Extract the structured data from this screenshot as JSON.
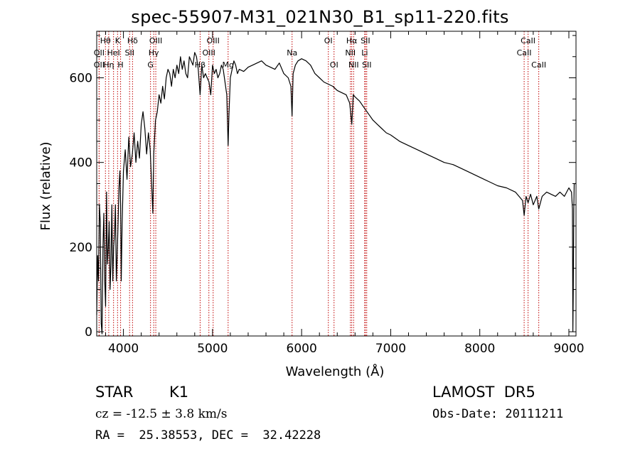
{
  "chart_data": {
    "type": "line",
    "title": "spec-55907-M31_021N30_B1_sp11-220.fits",
    "xlabel": "Wavelength (Å)",
    "ylabel": "Flux (relative)",
    "xlim": [
      3700,
      9080
    ],
    "ylim": [
      -10,
      710
    ],
    "xticks": [
      4000,
      5000,
      6000,
      7000,
      8000,
      9000
    ],
    "xtick_labels": [
      "4000",
      "5000",
      "6000",
      "7000",
      "8000",
      "9000"
    ],
    "yticks": [
      0,
      200,
      400,
      600
    ],
    "ytick_labels": [
      "0",
      "200",
      "400",
      "600"
    ],
    "grid": false,
    "legend": "none",
    "series": [
      {
        "color": "#000000",
        "x": [
          3700,
          3710,
          3720,
          3730,
          3740,
          3750,
          3760,
          3770,
          3780,
          3790,
          3800,
          3810,
          3820,
          3830,
          3840,
          3850,
          3860,
          3870,
          3880,
          3890,
          3900,
          3910,
          3920,
          3930,
          3940,
          3950,
          3960,
          3968,
          3975,
          3985,
          4000,
          4020,
          4040,
          4060,
          4080,
          4100,
          4120,
          4140,
          4160,
          4180,
          4200,
          4220,
          4240,
          4260,
          4280,
          4300,
          4320,
          4330,
          4340,
          4360,
          4380,
          4400,
          4420,
          4440,
          4460,
          4480,
          4500,
          4520,
          4540,
          4560,
          4580,
          4600,
          4620,
          4640,
          4660,
          4680,
          4700,
          4720,
          4740,
          4760,
          4780,
          4800,
          4820,
          4840,
          4861,
          4880,
          4900,
          4920,
          4940,
          4960,
          4980,
          5000,
          5020,
          5040,
          5060,
          5080,
          5100,
          5120,
          5140,
          5160,
          5175,
          5184,
          5200,
          5220,
          5240,
          5260,
          5280,
          5300,
          5350,
          5400,
          5450,
          5500,
          5550,
          5600,
          5650,
          5700,
          5750,
          5800,
          5850,
          5880,
          5893,
          5905,
          5930,
          5960,
          6000,
          6050,
          6100,
          6150,
          6200,
          6250,
          6300,
          6350,
          6400,
          6450,
          6500,
          6540,
          6563,
          6580,
          6600,
          6650,
          6700,
          6750,
          6800,
          6850,
          6900,
          6950,
          7000,
          7100,
          7200,
          7300,
          7400,
          7500,
          7600,
          7700,
          7800,
          7900,
          8000,
          8100,
          8200,
          8300,
          8400,
          8480,
          8498,
          8520,
          8542,
          8570,
          8600,
          8640,
          8662,
          8700,
          8750,
          8800,
          8850,
          8900,
          8950,
          9000,
          9030,
          9040,
          9045,
          9050,
          9055,
          9060,
          9070,
          9080
        ],
        "y": [
          40,
          180,
          120,
          300,
          260,
          20,
          -5,
          200,
          280,
          120,
          60,
          330,
          160,
          200,
          260,
          100,
          160,
          300,
          120,
          200,
          230,
          300,
          120,
          180,
          260,
          340,
          380,
          300,
          120,
          250,
          380,
          430,
          360,
          460,
          390,
          420,
          470,
          400,
          450,
          410,
          490,
          520,
          480,
          420,
          470,
          430,
          330,
          280,
          420,
          500,
          520,
          560,
          540,
          580,
          550,
          600,
          620,
          610,
          580,
          620,
          600,
          630,
          610,
          650,
          620,
          640,
          610,
          600,
          650,
          640,
          630,
          660,
          650,
          620,
          560,
          630,
          600,
          610,
          600,
          590,
          560,
          630,
          610,
          620,
          600,
          610,
          630,
          620,
          590,
          560,
          440,
          510,
          600,
          620,
          640,
          630,
          610,
          620,
          615,
          625,
          630,
          635,
          640,
          630,
          625,
          620,
          635,
          610,
          600,
          580,
          510,
          610,
          630,
          640,
          645,
          640,
          630,
          610,
          600,
          590,
          585,
          580,
          570,
          565,
          560,
          540,
          490,
          560,
          555,
          545,
          530,
          515,
          500,
          490,
          480,
          470,
          465,
          450,
          440,
          430,
          420,
          410,
          400,
          395,
          385,
          375,
          365,
          355,
          345,
          340,
          330,
          310,
          275,
          320,
          305,
          325,
          300,
          320,
          290,
          320,
          330,
          325,
          320,
          330,
          320,
          340,
          330,
          290,
          0,
          100,
          290,
          350,
          350,
          350
        ]
      }
    ],
    "line_labels": [
      {
        "text": "Hθ",
        "x": 3798,
        "row": 1
      },
      {
        "text": "OII",
        "x": 3727,
        "row": 2
      },
      {
        "text": "OII",
        "x": 3727,
        "row": 3
      },
      {
        "text": "Hη",
        "x": 3835,
        "row": 3
      },
      {
        "text": "K",
        "x": 3934,
        "row": 1
      },
      {
        "text": "HeI",
        "x": 3889,
        "row": 2
      },
      {
        "text": "H",
        "x": 3968,
        "row": 3
      },
      {
        "text": "Hδ",
        "x": 4102,
        "row": 1
      },
      {
        "text": "SII",
        "x": 4069,
        "row": 2
      },
      {
        "text": "OIII",
        "x": 4363,
        "row": 1
      },
      {
        "text": "Hγ",
        "x": 4340,
        "row": 2
      },
      {
        "text": "G",
        "x": 4304,
        "row": 3
      },
      {
        "text": "OIII",
        "x": 5007,
        "row": 1
      },
      {
        "text": "OIII",
        "x": 4959,
        "row": 2
      },
      {
        "text": "Hβ",
        "x": 4861,
        "row": 3
      },
      {
        "text": "Mg",
        "x": 5175,
        "row": 3
      },
      {
        "text": "Na",
        "x": 5893,
        "row": 2
      },
      {
        "text": "OI",
        "x": 6300,
        "row": 1
      },
      {
        "text": "OI",
        "x": 6364,
        "row": 3
      },
      {
        "text": "Hα",
        "x": 6563,
        "row": 1
      },
      {
        "text": "SII",
        "x": 6716,
        "row": 1
      },
      {
        "text": "NII",
        "x": 6548,
        "row": 2
      },
      {
        "text": "Li",
        "x": 6708,
        "row": 2
      },
      {
        "text": "NII",
        "x": 6584,
        "row": 3
      },
      {
        "text": "SII",
        "x": 6731,
        "row": 3
      },
      {
        "text": "CaII",
        "x": 8542,
        "row": 1
      },
      {
        "text": "CaII",
        "x": 8498,
        "row": 2
      },
      {
        "text": "CaII",
        "x": 8662,
        "row": 3
      }
    ],
    "line_marker_color": "#c00000"
  },
  "info": {
    "class": "STAR",
    "subclass": "K1",
    "survey": "LAMOST  DR5",
    "cz": "cz = -12.5 ± 3.8 km/s",
    "obsdate": "Obs-Date: 20111211",
    "radec": "RA =  25.38553, DEC =  32.42228"
  }
}
